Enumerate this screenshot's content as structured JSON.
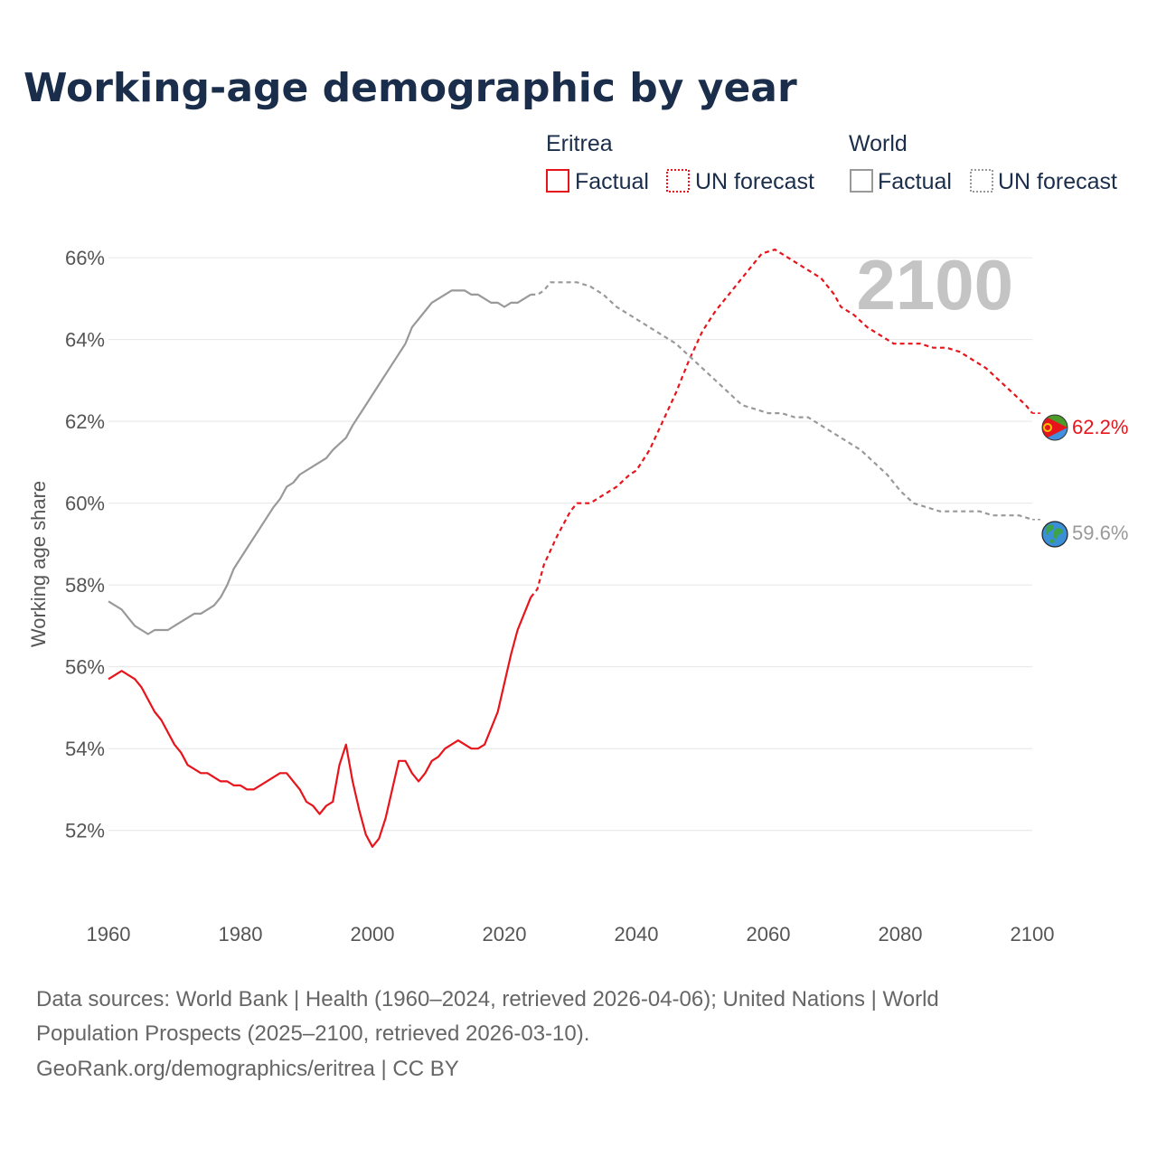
{
  "title": "Working-age demographic by year",
  "legend": {
    "group_eritrea": "Eritrea",
    "group_world": "World",
    "factual": "Factual",
    "forecast": "UN forecast"
  },
  "colors": {
    "eritrea": "#e8141b",
    "world": "#999999",
    "title": "#1a2d4b",
    "grid": "#e6e6e6"
  },
  "big_year": "2100",
  "end_labels": {
    "eritrea": "62.2%",
    "world": "59.6%"
  },
  "footer": {
    "line1": "Data sources: World Bank | Health (1960–2024, retrieved 2026-04-06); United Nations | World",
    "line2": "Population Prospects (2025–2100, retrieved 2026-03-10).",
    "line3": "GeoRank.org/demographics/eritrea | CC BY"
  },
  "chart_data": {
    "type": "line",
    "title": "Working-age demographic by year",
    "ylabel": "Working age share",
    "xlabel": "",
    "xlim": [
      1960,
      2100
    ],
    "ylim": [
      50.8,
      66.6
    ],
    "xticks": [
      1960,
      1980,
      2000,
      2020,
      2040,
      2060,
      2080,
      2100
    ],
    "yticks": [
      52,
      54,
      56,
      58,
      60,
      62,
      64,
      66
    ],
    "ytick_labels": [
      "52%",
      "54%",
      "56%",
      "58%",
      "60%",
      "62%",
      "64%",
      "66%"
    ],
    "xtick_labels": [
      "1960",
      "1980",
      "2000",
      "2020",
      "2040",
      "2060",
      "2080",
      "2100"
    ],
    "series": [
      {
        "name": "Eritrea",
        "key": "eritrea",
        "factual_end": 2024,
        "points": [
          [
            1960,
            55.7
          ],
          [
            1962,
            55.9
          ],
          [
            1964,
            55.7
          ],
          [
            1965,
            55.5
          ],
          [
            1967,
            54.9
          ],
          [
            1968,
            54.7
          ],
          [
            1970,
            54.1
          ],
          [
            1971,
            53.9
          ],
          [
            1972,
            53.6
          ],
          [
            1974,
            53.4
          ],
          [
            1975,
            53.4
          ],
          [
            1977,
            53.2
          ],
          [
            1978,
            53.2
          ],
          [
            1979,
            53.1
          ],
          [
            1980,
            53.1
          ],
          [
            1981,
            53.0
          ],
          [
            1982,
            53.0
          ],
          [
            1984,
            53.2
          ],
          [
            1986,
            53.4
          ],
          [
            1987,
            53.4
          ],
          [
            1989,
            53.0
          ],
          [
            1990,
            52.7
          ],
          [
            1991,
            52.6
          ],
          [
            1992,
            52.4
          ],
          [
            1993,
            52.6
          ],
          [
            1994,
            52.7
          ],
          [
            1995,
            53.6
          ],
          [
            1996,
            54.1
          ],
          [
            1997,
            53.2
          ],
          [
            1998,
            52.5
          ],
          [
            1999,
            51.9
          ],
          [
            2000,
            51.6
          ],
          [
            2001,
            51.8
          ],
          [
            2002,
            52.3
          ],
          [
            2003,
            53.0
          ],
          [
            2004,
            53.7
          ],
          [
            2005,
            53.7
          ],
          [
            2006,
            53.4
          ],
          [
            2007,
            53.2
          ],
          [
            2008,
            53.4
          ],
          [
            2009,
            53.7
          ],
          [
            2010,
            53.8
          ],
          [
            2011,
            54.0
          ],
          [
            2013,
            54.2
          ],
          [
            2015,
            54.0
          ],
          [
            2016,
            54.0
          ],
          [
            2017,
            54.1
          ],
          [
            2019,
            54.9
          ],
          [
            2021,
            56.3
          ],
          [
            2022,
            56.9
          ],
          [
            2024,
            57.7
          ],
          [
            2025,
            57.9
          ],
          [
            2026,
            58.5
          ],
          [
            2028,
            59.2
          ],
          [
            2030,
            59.8
          ],
          [
            2031,
            60.0
          ],
          [
            2033,
            60.0
          ],
          [
            2035,
            60.2
          ],
          [
            2037,
            60.4
          ],
          [
            2039,
            60.7
          ],
          [
            2040,
            60.8
          ],
          [
            2042,
            61.3
          ],
          [
            2044,
            62.0
          ],
          [
            2046,
            62.7
          ],
          [
            2048,
            63.5
          ],
          [
            2050,
            64.2
          ],
          [
            2052,
            64.7
          ],
          [
            2054,
            65.1
          ],
          [
            2056,
            65.5
          ],
          [
            2058,
            65.9
          ],
          [
            2059,
            66.1
          ],
          [
            2061,
            66.2
          ],
          [
            2062,
            66.1
          ],
          [
            2064,
            65.9
          ],
          [
            2066,
            65.7
          ],
          [
            2068,
            65.5
          ],
          [
            2070,
            65.1
          ],
          [
            2071,
            64.8
          ],
          [
            2073,
            64.6
          ],
          [
            2075,
            64.3
          ],
          [
            2077,
            64.1
          ],
          [
            2079,
            63.9
          ],
          [
            2081,
            63.9
          ],
          [
            2083,
            63.9
          ],
          [
            2085,
            63.8
          ],
          [
            2087,
            63.8
          ],
          [
            2089,
            63.7
          ],
          [
            2091,
            63.5
          ],
          [
            2093,
            63.3
          ],
          [
            2095,
            63.0
          ],
          [
            2097,
            62.7
          ],
          [
            2099,
            62.4
          ],
          [
            2100,
            62.2
          ]
        ]
      },
      {
        "name": "World",
        "key": "world",
        "factual_end": 2024,
        "points": [
          [
            1960,
            57.6
          ],
          [
            1962,
            57.4
          ],
          [
            1963,
            57.2
          ],
          [
            1964,
            57.0
          ],
          [
            1966,
            56.8
          ],
          [
            1967,
            56.9
          ],
          [
            1969,
            56.9
          ],
          [
            1970,
            57.0
          ],
          [
            1972,
            57.2
          ],
          [
            1973,
            57.3
          ],
          [
            1974,
            57.3
          ],
          [
            1976,
            57.5
          ],
          [
            1977,
            57.7
          ],
          [
            1978,
            58.0
          ],
          [
            1979,
            58.4
          ],
          [
            1981,
            58.9
          ],
          [
            1983,
            59.4
          ],
          [
            1985,
            59.9
          ],
          [
            1986,
            60.1
          ],
          [
            1987,
            60.4
          ],
          [
            1988,
            60.5
          ],
          [
            1989,
            60.7
          ],
          [
            1991,
            60.9
          ],
          [
            1993,
            61.1
          ],
          [
            1994,
            61.3
          ],
          [
            1996,
            61.6
          ],
          [
            1997,
            61.9
          ],
          [
            1999,
            62.4
          ],
          [
            2001,
            62.9
          ],
          [
            2003,
            63.4
          ],
          [
            2005,
            63.9
          ],
          [
            2006,
            64.3
          ],
          [
            2008,
            64.7
          ],
          [
            2009,
            64.9
          ],
          [
            2011,
            65.1
          ],
          [
            2012,
            65.2
          ],
          [
            2014,
            65.2
          ],
          [
            2015,
            65.1
          ],
          [
            2016,
            65.1
          ],
          [
            2018,
            64.9
          ],
          [
            2019,
            64.9
          ],
          [
            2020,
            64.8
          ],
          [
            2021,
            64.9
          ],
          [
            2022,
            64.9
          ],
          [
            2024,
            65.1
          ],
          [
            2025,
            65.1
          ],
          [
            2026,
            65.2
          ],
          [
            2027,
            65.4
          ],
          [
            2029,
            65.4
          ],
          [
            2031,
            65.4
          ],
          [
            2033,
            65.3
          ],
          [
            2035,
            65.1
          ],
          [
            2037,
            64.8
          ],
          [
            2039,
            64.6
          ],
          [
            2040,
            64.5
          ],
          [
            2042,
            64.3
          ],
          [
            2044,
            64.1
          ],
          [
            2046,
            63.9
          ],
          [
            2048,
            63.6
          ],
          [
            2050,
            63.3
          ],
          [
            2052,
            63.0
          ],
          [
            2054,
            62.7
          ],
          [
            2056,
            62.4
          ],
          [
            2058,
            62.3
          ],
          [
            2060,
            62.2
          ],
          [
            2062,
            62.2
          ],
          [
            2064,
            62.1
          ],
          [
            2066,
            62.1
          ],
          [
            2068,
            61.9
          ],
          [
            2070,
            61.7
          ],
          [
            2072,
            61.5
          ],
          [
            2074,
            61.3
          ],
          [
            2076,
            61.0
          ],
          [
            2078,
            60.7
          ],
          [
            2080,
            60.3
          ],
          [
            2082,
            60.0
          ],
          [
            2084,
            59.9
          ],
          [
            2086,
            59.8
          ],
          [
            2088,
            59.8
          ],
          [
            2090,
            59.8
          ],
          [
            2092,
            59.8
          ],
          [
            2094,
            59.7
          ],
          [
            2096,
            59.7
          ],
          [
            2098,
            59.7
          ],
          [
            2100,
            59.6
          ]
        ]
      }
    ]
  }
}
